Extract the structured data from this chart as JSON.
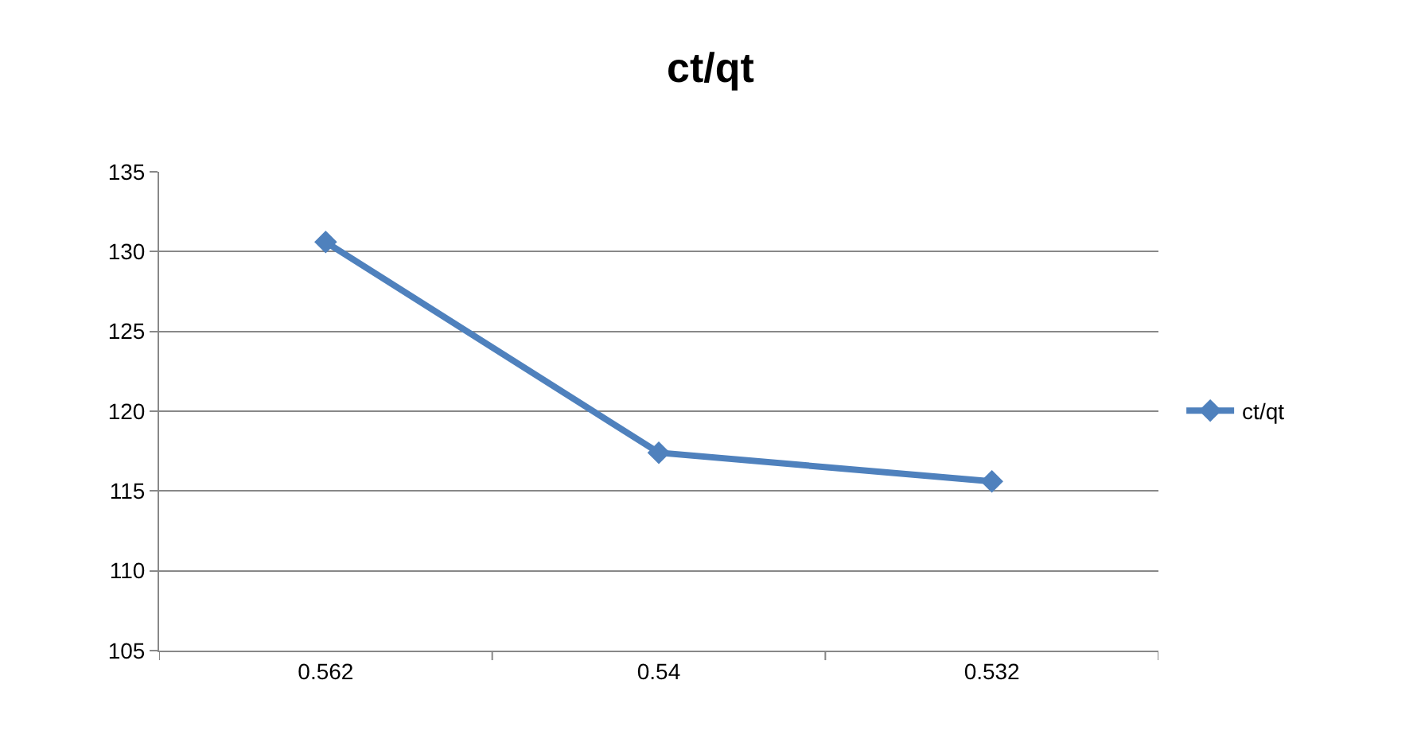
{
  "chart_data": {
    "type": "line",
    "title": "ct/qt",
    "categories": [
      "0.562",
      "0.54",
      "0.532"
    ],
    "series": [
      {
        "name": "ct/qt",
        "color": "#4f81bd",
        "values": [
          130.6,
          117.4,
          115.6
        ]
      }
    ],
    "ylim": [
      105,
      135
    ],
    "yticks": [
      105,
      110,
      115,
      120,
      125,
      130,
      135
    ],
    "grid": "y",
    "legend": "right",
    "marker": "diamond",
    "line_style": "solid"
  }
}
